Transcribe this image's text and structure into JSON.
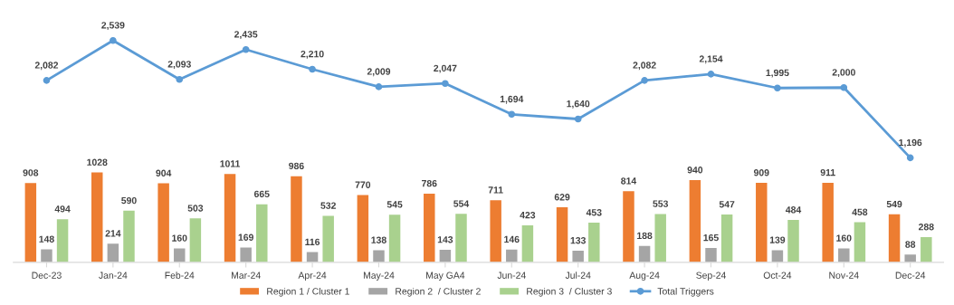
{
  "chart_data": {
    "type": "bar",
    "categories": [
      "Dec-23",
      "Jan-24",
      "Feb-24",
      "Mar-24",
      "Apr-24",
      "May-24",
      "May GA4",
      "Jun-24",
      "Jul-24",
      "Aug-24",
      "Sep-24",
      "Oct-24",
      "Nov-24",
      "Dec-24"
    ],
    "series": [
      {
        "name": "Region 1 / Cluster 1",
        "color": "#ed7d31",
        "values": [
          908,
          1028,
          904,
          1011,
          986,
          770,
          786,
          711,
          629,
          814,
          940,
          909,
          911,
          549
        ]
      },
      {
        "name": "Region 2  / Cluster 2",
        "color": "#a5a5a5",
        "values": [
          148,
          214,
          160,
          169,
          116,
          138,
          143,
          146,
          133,
          188,
          165,
          139,
          160,
          88
        ]
      },
      {
        "name": "Region 3  / Cluster 3",
        "color": "#a9d18e",
        "values": [
          494,
          590,
          503,
          665,
          532,
          545,
          554,
          423,
          453,
          553,
          547,
          484,
          458,
          288
        ]
      },
      {
        "name": "Total Triggers",
        "type": "line",
        "color": "#5b9bd5",
        "marker": "circle",
        "line_style": "solid",
        "values": [
          2082,
          2539,
          2093,
          2435,
          2210,
          2009,
          2047,
          1694,
          1640,
          2082,
          2154,
          1995,
          2000,
          1196
        ],
        "value_labels": [
          "2,082",
          "2,539",
          "2,093",
          "2,435",
          "2,210",
          "2,009",
          "2,047",
          "1,694",
          "1,640",
          "2,082",
          "2,154",
          "1,995",
          "2,000",
          "1,196"
        ]
      }
    ],
    "data_labels": true,
    "grid": false,
    "legend": "bottom",
    "tick_labels": "x"
  }
}
